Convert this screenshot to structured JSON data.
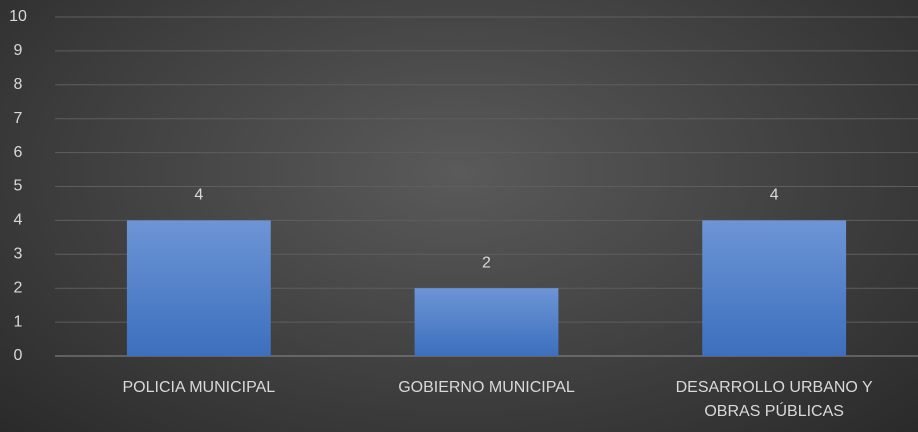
{
  "chart_data": {
    "type": "bar",
    "categories": [
      "POLICIA MUNICIPAL",
      "GOBIERNO MUNICIPAL",
      "DESARROLLO URBANO Y OBRAS PÚBLICAS"
    ],
    "values": [
      4,
      2,
      4
    ],
    "color": "#4a7cc7",
    "ylim": [
      0,
      10
    ],
    "yticks": [
      0,
      1,
      2,
      3,
      4,
      5,
      6,
      7,
      8,
      9,
      10
    ],
    "grid": true,
    "data_labels": true
  }
}
